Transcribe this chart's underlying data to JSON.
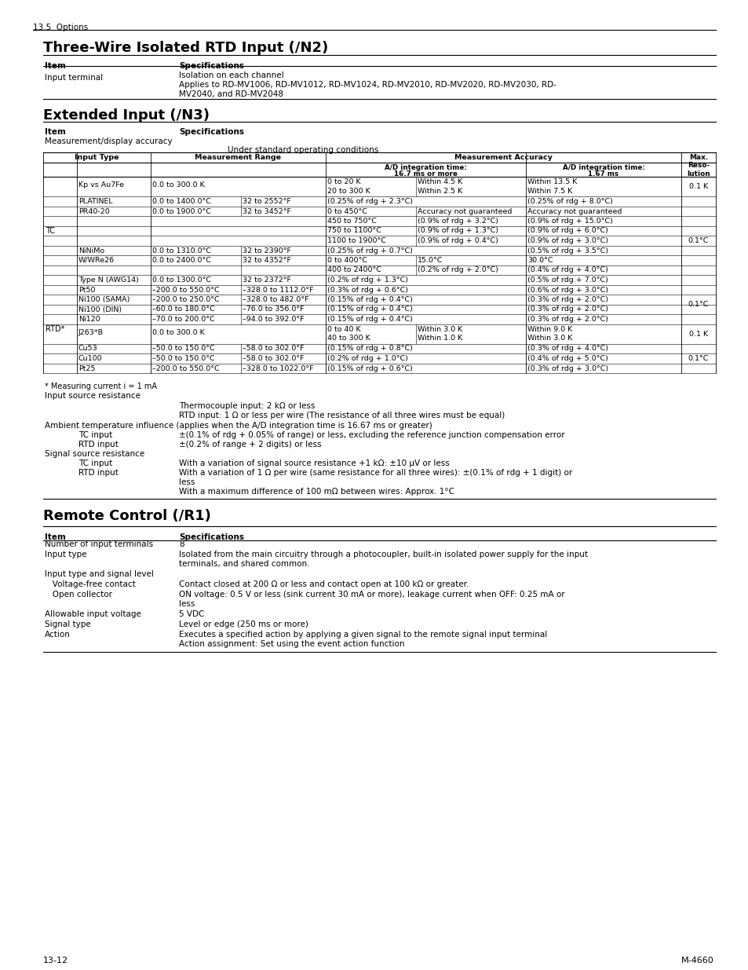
{
  "page_header": "13.5  Options",
  "page_footer_left": "13-12",
  "page_footer_right": "M-4660",
  "bg": "#ffffff",
  "sections": [
    {
      "title": "Three-Wire Isolated RTD Input (/N2)"
    },
    {
      "title": "Extended Input (/N3)"
    },
    {
      "title": "Remote Control (/R1)"
    }
  ]
}
